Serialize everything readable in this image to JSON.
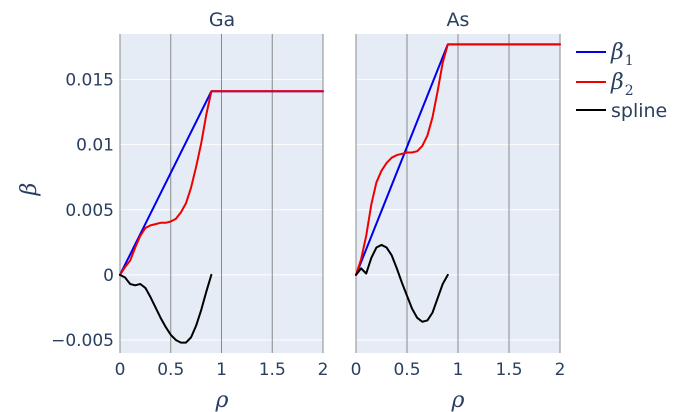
{
  "chart_data": {
    "type": "line",
    "ylabel": "β",
    "ylim": [
      -0.006,
      0.0185
    ],
    "yticks": [
      -0.005,
      0,
      0.005,
      0.01,
      0.015
    ],
    "ytick_labels": [
      "−0.005",
      "0",
      "0.005",
      "0.01",
      "0.015"
    ],
    "xticks": [
      0,
      0.5,
      1,
      1.5,
      2
    ],
    "xtick_labels": [
      "0",
      "0.5",
      "1",
      "1.5",
      "2"
    ],
    "legend_placement": "top-right",
    "legend": [
      {
        "base": "β",
        "sub": "1",
        "color": "#0000ee"
      },
      {
        "base": "β",
        "sub": "2",
        "color": "#ee0000"
      },
      {
        "text": "spline",
        "color": "#000000"
      }
    ],
    "subplots": [
      {
        "title": "Ga",
        "xlabel": "ρ",
        "xlim": [
          0,
          2
        ],
        "series": [
          {
            "name": "β1",
            "color": "#0000ee",
            "x": [
              0,
              0.9,
              2
            ],
            "y": [
              0,
              0.0141,
              0.0141
            ]
          },
          {
            "name": "β2",
            "color": "#ee0000",
            "x": [
              0,
              0.05,
              0.1,
              0.15,
              0.2,
              0.25,
              0.3,
              0.35,
              0.4,
              0.45,
              0.5,
              0.55,
              0.6,
              0.65,
              0.7,
              0.75,
              0.8,
              0.85,
              0.9,
              2
            ],
            "y": [
              0,
              0.0006,
              0.0011,
              0.0021,
              0.003,
              0.0036,
              0.0038,
              0.0039,
              0.004,
              0.004,
              0.0041,
              0.0043,
              0.0048,
              0.0055,
              0.0067,
              0.0083,
              0.0101,
              0.0123,
              0.0141,
              0.0141
            ]
          },
          {
            "name": "spline",
            "color": "#000000",
            "x": [
              0,
              0.05,
              0.1,
              0.15,
              0.2,
              0.25,
              0.3,
              0.35,
              0.4,
              0.45,
              0.5,
              0.55,
              0.6,
              0.65,
              0.7,
              0.75,
              0.8,
              0.85,
              0.9
            ],
            "y": [
              0,
              -0.0002,
              -0.0007,
              -0.0008,
              -0.0007,
              -0.001,
              -0.0017,
              -0.0025,
              -0.0033,
              -0.004,
              -0.0046,
              -0.005,
              -0.0052,
              -0.0052,
              -0.0048,
              -0.0039,
              -0.0027,
              -0.0013,
              0
            ]
          }
        ]
      },
      {
        "title": "As",
        "xlabel": "ρ",
        "xlim": [
          0,
          2
        ],
        "series": [
          {
            "name": "β1",
            "color": "#0000ee",
            "x": [
              0,
              0.9,
              2
            ],
            "y": [
              0,
              0.0177,
              0.0177
            ]
          },
          {
            "name": "β2",
            "color": "#ee0000",
            "x": [
              0,
              0.05,
              0.1,
              0.15,
              0.2,
              0.25,
              0.3,
              0.35,
              0.4,
              0.45,
              0.5,
              0.55,
              0.6,
              0.65,
              0.7,
              0.75,
              0.8,
              0.85,
              0.9,
              2
            ],
            "y": [
              0,
              0.0012,
              0.003,
              0.0054,
              0.0071,
              0.008,
              0.0086,
              0.009,
              0.0092,
              0.0093,
              0.0094,
              0.0094,
              0.0095,
              0.0099,
              0.0107,
              0.0121,
              0.0141,
              0.0163,
              0.0177,
              0.0177
            ]
          },
          {
            "name": "spline",
            "color": "#000000",
            "x": [
              0,
              0.05,
              0.1,
              0.15,
              0.2,
              0.25,
              0.3,
              0.35,
              0.4,
              0.45,
              0.5,
              0.55,
              0.6,
              0.65,
              0.7,
              0.75,
              0.8,
              0.85,
              0.9
            ],
            "y": [
              0,
              0.0005,
              0.0001,
              0.0013,
              0.0021,
              0.0023,
              0.0021,
              0.0015,
              0.0005,
              -0.0006,
              -0.0016,
              -0.0026,
              -0.0033,
              -0.0036,
              -0.0035,
              -0.0029,
              -0.0018,
              -0.0007,
              0
            ]
          }
        ]
      }
    ]
  }
}
